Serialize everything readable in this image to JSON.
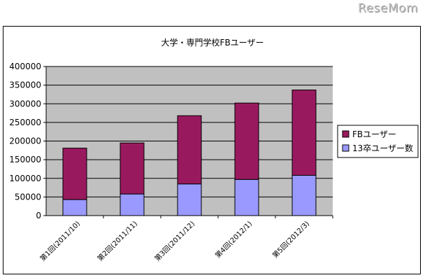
{
  "watermark": "ReseMom",
  "colors": {
    "plot_background": "#c0c0c0",
    "fb_users": "#99195e",
    "graduates_2013": "#9999ff",
    "axis": "#000000"
  },
  "chart_data": {
    "type": "bar",
    "stacked": true,
    "title": "大学・専門学校FBユーザー",
    "xlabel": "",
    "ylabel": "",
    "categories": [
      "第1回(2011/10)",
      "第2回(2011/11)",
      "第3回(2011/12)",
      "第4回(2012/1)",
      "第5回(2012/3)"
    ],
    "series": [
      {
        "name": "13卒ユーザー数",
        "color": "#9999ff",
        "values": [
          43000,
          58000,
          85000,
          97000,
          108000
        ]
      },
      {
        "name": "FBユーザー",
        "color": "#99195e",
        "values": [
          138000,
          137000,
          183000,
          205000,
          229000
        ]
      }
    ],
    "totals": [
      181000,
      195000,
      268000,
      302000,
      337000
    ],
    "ylim": [
      0,
      400000
    ],
    "yticks": [
      "0",
      "50000",
      "100000",
      "150000",
      "200000",
      "250000",
      "300000",
      "350000",
      "400000"
    ],
    "grid": true,
    "legend_position": "right",
    "legend_order": [
      "FBユーザー",
      "13卒ユーザー数"
    ]
  }
}
